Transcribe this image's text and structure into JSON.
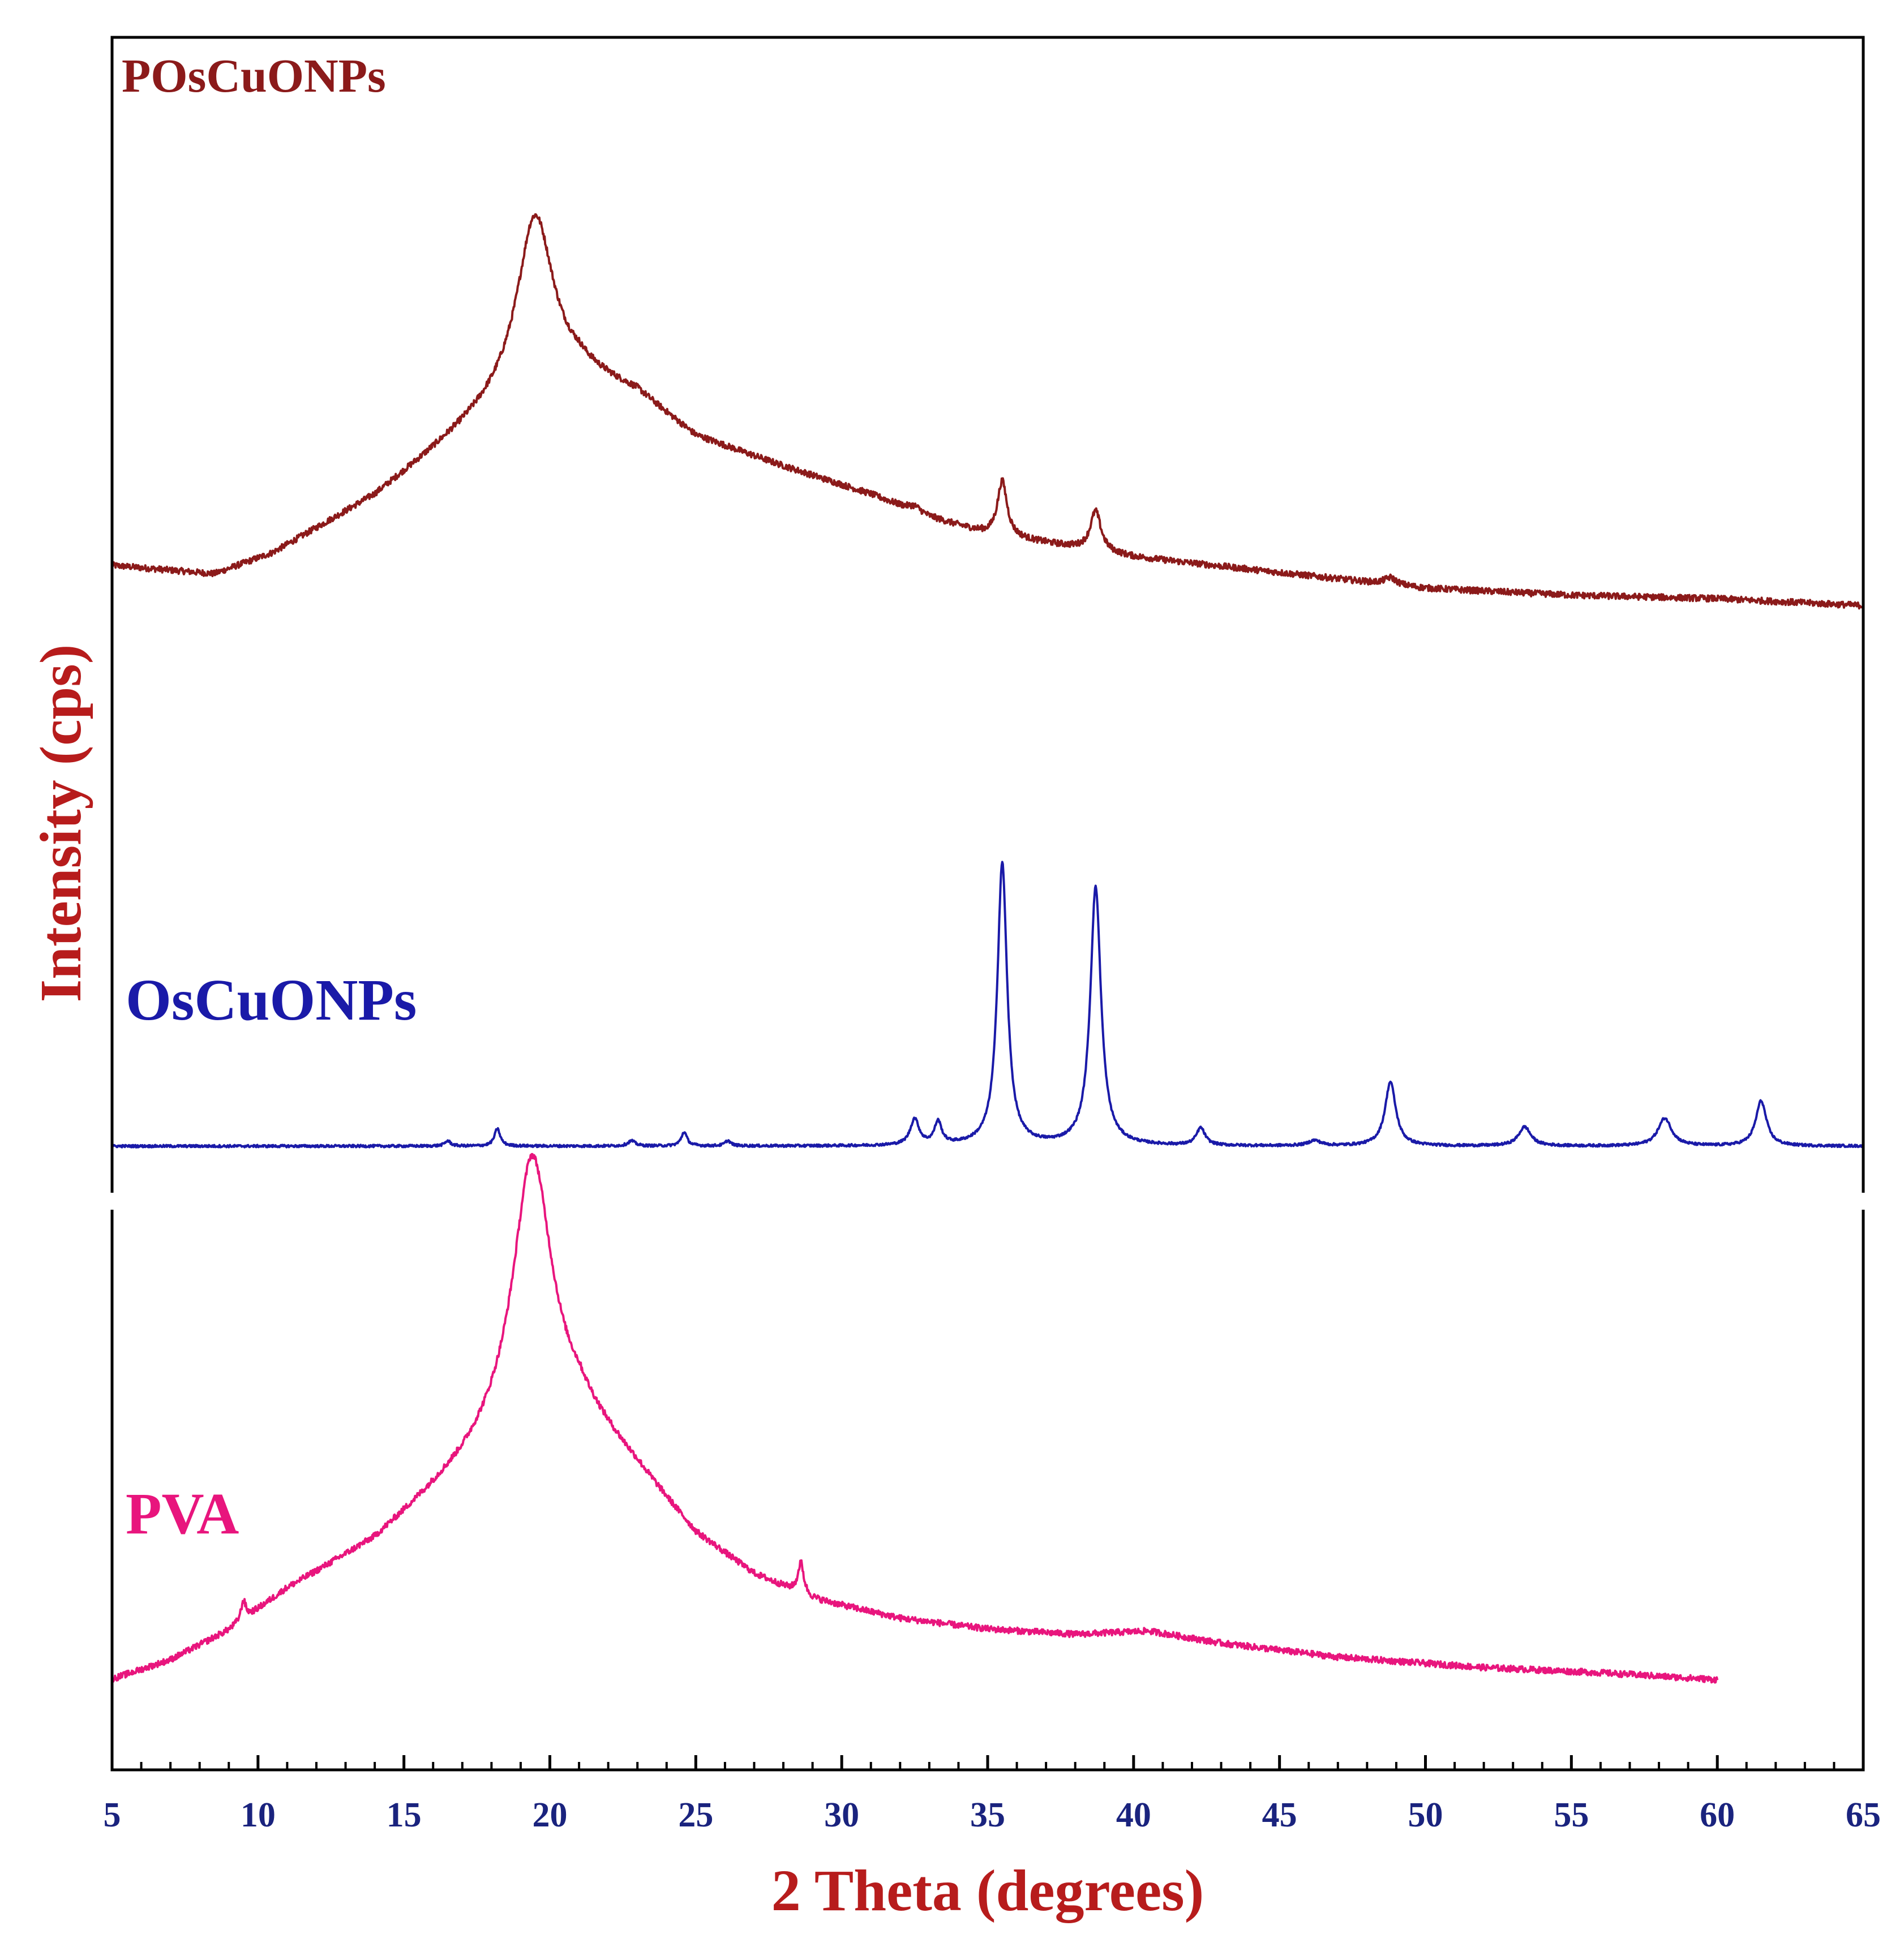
{
  "colors": {
    "frame": "#000000",
    "tick_label": "#1a237e",
    "axis_title": "#b71c1c"
  },
  "chart_data": {
    "type": "line",
    "title": "",
    "xlabel": "2 Theta (degrees)",
    "ylabel": "Intensity (cps)",
    "xlim": [
      5,
      65
    ],
    "ylim": [
      0,
      100
    ],
    "y_ticks_shown": false,
    "grid": false,
    "legend": "inline labels",
    "x_ticks": [
      5,
      10,
      15,
      20,
      25,
      30,
      35,
      40,
      45,
      50,
      55,
      60,
      65
    ],
    "series": [
      {
        "name": "POsCuONPs",
        "color": "#8b1a1a",
        "x_range": [
          5,
          65
        ],
        "baseline": [
          [
            5,
            69.5
          ],
          [
            8.5,
            69.0
          ],
          [
            10.5,
            70.2
          ],
          [
            14,
            73.5
          ],
          [
            17,
            77.3
          ],
          [
            19.3,
            80.2
          ],
          [
            21,
            80.6
          ],
          [
            23,
            79.4
          ],
          [
            25,
            76.9
          ],
          [
            28,
            75.2
          ],
          [
            31,
            73.6
          ],
          [
            33,
            72.3
          ],
          [
            35,
            71.3
          ],
          [
            37,
            70.8
          ],
          [
            40,
            70.0
          ],
          [
            45,
            69.1
          ],
          [
            50,
            68.2
          ],
          [
            55,
            67.8
          ],
          [
            60,
            67.6
          ],
          [
            65,
            67.2
          ]
        ],
        "peaks": [
          {
            "x": 19.5,
            "height": 9.5,
            "width": 0.75
          },
          {
            "x": 35.5,
            "height": 3.2,
            "width": 0.2
          },
          {
            "x": 38.7,
            "height": 2.3,
            "width": 0.22
          },
          {
            "x": 48.8,
            "height": 0.4,
            "width": 0.25
          },
          {
            "x": 32.5,
            "height": 0.3,
            "width": 0.25
          }
        ],
        "noise": 0.18
      },
      {
        "name": "OsCuONPs",
        "color": "#1a1aa8",
        "x_range": [
          5,
          65
        ],
        "baseline": [
          [
            5,
            36.0
          ],
          [
            30,
            36.0
          ],
          [
            65,
            36.0
          ]
        ],
        "peaks": [
          {
            "x": 16.5,
            "height": 0.3,
            "width": 0.12
          },
          {
            "x": 18.2,
            "height": 1.0,
            "width": 0.12
          },
          {
            "x": 22.8,
            "height": 0.3,
            "width": 0.15
          },
          {
            "x": 24.6,
            "height": 0.8,
            "width": 0.12
          },
          {
            "x": 26.1,
            "height": 0.3,
            "width": 0.12
          },
          {
            "x": 32.5,
            "height": 1.5,
            "width": 0.18
          },
          {
            "x": 33.3,
            "height": 1.3,
            "width": 0.15
          },
          {
            "x": 35.5,
            "height": 16.3,
            "width": 0.2
          },
          {
            "x": 38.7,
            "height": 14.9,
            "width": 0.22
          },
          {
            "x": 42.3,
            "height": 1.0,
            "width": 0.18
          },
          {
            "x": 46.2,
            "height": 0.3,
            "width": 0.25
          },
          {
            "x": 48.8,
            "height": 3.7,
            "width": 0.22
          },
          {
            "x": 53.4,
            "height": 1.1,
            "width": 0.25
          },
          {
            "x": 58.2,
            "height": 1.6,
            "width": 0.28
          },
          {
            "x": 61.5,
            "height": 2.6,
            "width": 0.22
          }
        ],
        "noise": 0.07
      },
      {
        "name": "PVA",
        "color": "#e8157d",
        "x_range": [
          5,
          60
        ],
        "baseline": [
          [
            5,
            5.2
          ],
          [
            7,
            6.3
          ],
          [
            9,
            8.0
          ],
          [
            11,
            10.4
          ],
          [
            14,
            13.2
          ],
          [
            17,
            17.4
          ],
          [
            19.3,
            21.0
          ],
          [
            21,
            20.7
          ],
          [
            23,
            17.3
          ],
          [
            25,
            13.5
          ],
          [
            27,
            11.2
          ],
          [
            29,
            9.8
          ],
          [
            32,
            8.7
          ],
          [
            35,
            8.1
          ],
          [
            38,
            7.8
          ],
          [
            40.5,
            8.0
          ],
          [
            43,
            7.3
          ],
          [
            47,
            6.5
          ],
          [
            52,
            5.9
          ],
          [
            56,
            5.6
          ],
          [
            60,
            5.2
          ]
        ],
        "peaks": [
          {
            "x": 19.4,
            "height": 14.5,
            "width": 0.8
          },
          {
            "x": 9.5,
            "height": 1.1,
            "width": 0.1
          },
          {
            "x": 28.6,
            "height": 1.8,
            "width": 0.12
          }
        ],
        "noise": 0.18
      }
    ],
    "series_labels": [
      {
        "text": "POsCuONPs",
        "color": "#8b1a1a"
      },
      {
        "text": "OsCuONPs",
        "color": "#1a1aa8"
      },
      {
        "text": "PVA",
        "color": "#e8157d"
      }
    ]
  }
}
